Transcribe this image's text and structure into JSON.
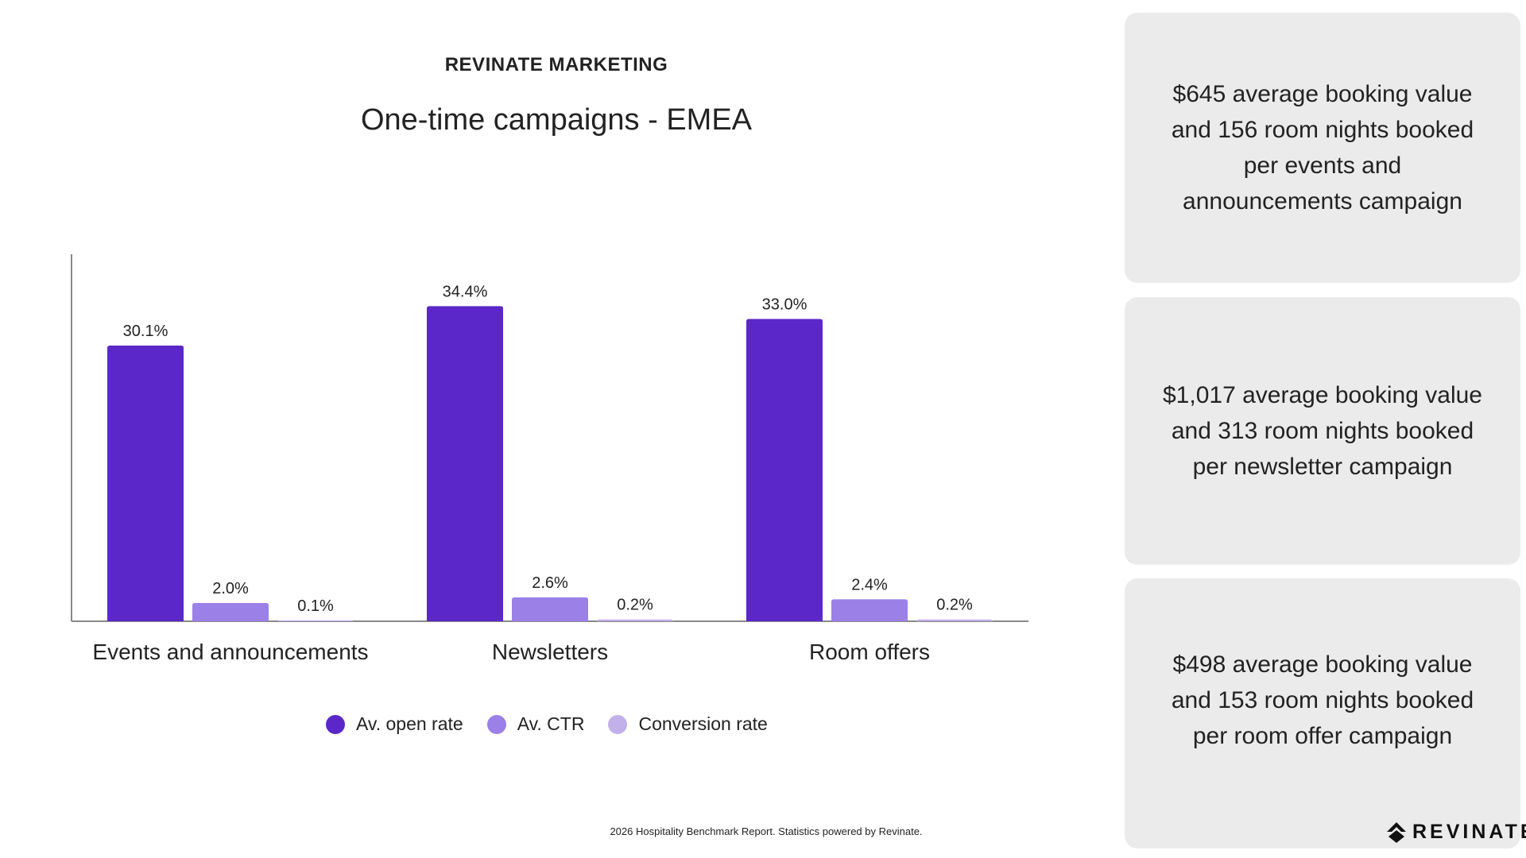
{
  "chart_data": {
    "type": "bar",
    "brand": "REVINATE MARKETING",
    "title": "One-time campaigns - EMEA",
    "categories": [
      "Events and announcements",
      "Newsletters",
      "Room offers"
    ],
    "series": [
      {
        "name": "Av. open rate",
        "color": "#5b27c8",
        "values": [
          30.1,
          34.4,
          33.0
        ],
        "labels": [
          "30.1%",
          "34.4%",
          "33.0%"
        ]
      },
      {
        "name": "Av. CTR",
        "color": "#9b80e8",
        "values": [
          2.0,
          2.6,
          2.4
        ],
        "labels": [
          "2.0%",
          "2.6%",
          "2.4%"
        ]
      },
      {
        "name": "Conversion rate",
        "color": "#c2b0ea",
        "values": [
          0.1,
          0.2,
          0.2
        ],
        "labels": [
          "0.1%",
          "0.2%",
          "0.2%"
        ]
      }
    ],
    "ylim": [
      0,
      36
    ],
    "grid": false,
    "legend": "bottom"
  },
  "cards": [
    "$645 average booking value and 156 room nights booked per events and announcements campaign",
    "$1,017 average booking value and 313 room nights booked per newsletter campaign",
    "$498 average booking value and 153 room nights booked per room offer campaign"
  ],
  "footer": "2026 Hospitality Benchmark Report. Statistics powered by Revinate.",
  "logo_text": "REVINATE"
}
